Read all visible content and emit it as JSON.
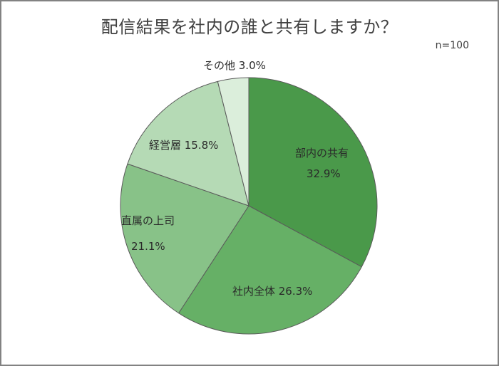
{
  "chart_data": {
    "type": "pie",
    "title": "配信結果を社内の誰と共有しますか？",
    "annotation": "n=100",
    "start_angle_deg": 0,
    "direction": "clockwise",
    "slices": [
      {
        "label": "部内の共有",
        "value": 32.9,
        "value_label": "32.9%",
        "color": "#4a994a"
      },
      {
        "label": "社内全体",
        "value": 26.3,
        "value_label": "26.3%",
        "color": "#66b066"
      },
      {
        "label": "直属の上司",
        "value": 21.1,
        "value_label": "21.1%",
        "color": "#88c288"
      },
      {
        "label": "経営層",
        "value": 15.8,
        "value_label": "15.8%",
        "color": "#b5dab5"
      },
      {
        "label": "その他",
        "value": 3.0,
        "value_label": "3.0%",
        "color": "#dbeedb"
      }
    ],
    "legend": "none (data labels on slices)"
  },
  "labels": {
    "s0_name": "部内の共有",
    "s0_pct": "32.9%",
    "s1": "社内全体 26.3%",
    "s2_name": "直属の上司",
    "s2_pct": "21.1%",
    "s3": "経営層 15.8%",
    "s4": "その他 3.0%"
  }
}
